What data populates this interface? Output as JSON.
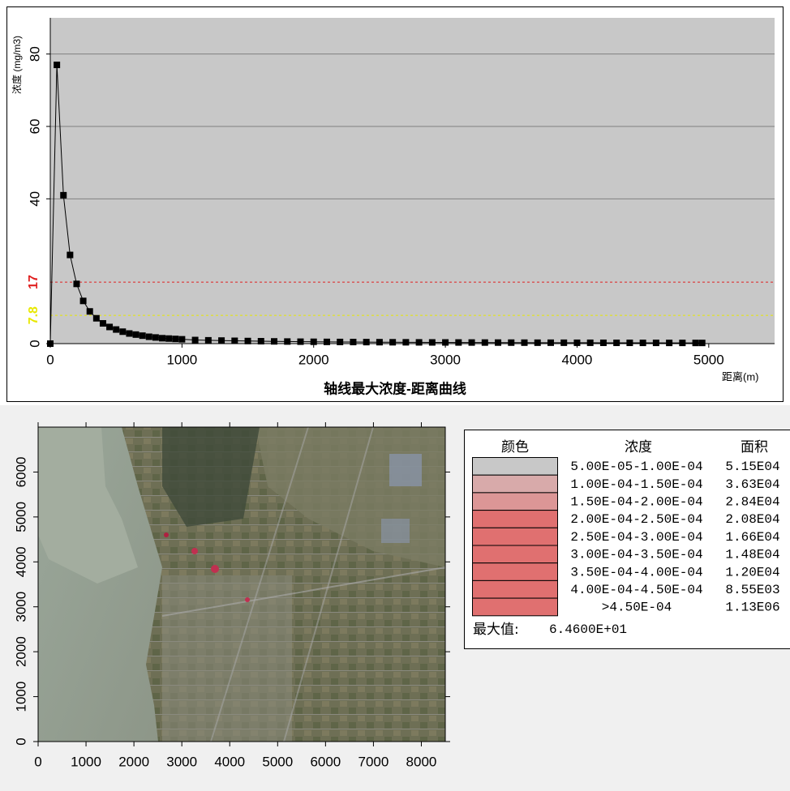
{
  "chart_data": {
    "type": "line",
    "title": "轴线最大浓度-距离曲线",
    "ylabel": "浓度 (mg/m3)",
    "xlabel": "距离(m)",
    "color": "#000000",
    "x": [
      0,
      50,
      100,
      150,
      200,
      250,
      300,
      350,
      400,
      450,
      500,
      550,
      600,
      650,
      700,
      750,
      800,
      850,
      900,
      950,
      1000,
      1100,
      1200,
      1300,
      1400,
      1500,
      1600,
      1700,
      1800,
      1900,
      2000,
      2100,
      2200,
      2300,
      2400,
      2500,
      2600,
      2700,
      2800,
      2900,
      3000,
      3100,
      3200,
      3300,
      3400,
      3500,
      3600,
      3700,
      3800,
      3900,
      4000,
      4100,
      4200,
      4300,
      4400,
      4500,
      4600,
      4700,
      4800,
      4900,
      4950
    ],
    "values": [
      0,
      77,
      41,
      24.5,
      16.5,
      11.8,
      8.9,
      7,
      5.6,
      4.6,
      3.9,
      3.3,
      2.8,
      2.5,
      2.2,
      1.9,
      1.7,
      1.5,
      1.4,
      1.3,
      1.2,
      1.0,
      0.92,
      0.85,
      0.78,
      0.72,
      0.67,
      0.62,
      0.58,
      0.54,
      0.51,
      0.48,
      0.46,
      0.44,
      0.42,
      0.4,
      0.38,
      0.37,
      0.35,
      0.34,
      0.33,
      0.32,
      0.31,
      0.3,
      0.29,
      0.28,
      0.27,
      0.26,
      0.26,
      0.25,
      0.24,
      0.24,
      0.23,
      0.22,
      0.22,
      0.21,
      0.21,
      0.2,
      0.2,
      0.19,
      0.19
    ],
    "xlim": [
      0,
      5500
    ],
    "ylim": [
      0,
      90
    ],
    "xticks": [
      0,
      1000,
      2000,
      3000,
      4000,
      5000
    ],
    "yticks": [
      0,
      40,
      60,
      80
    ],
    "grid": true,
    "reference_lines": [
      {
        "value": 17,
        "color": "#e02020"
      },
      {
        "value": 7.8,
        "color": "#e8e800"
      }
    ]
  },
  "map": {
    "xlim": [
      0,
      8500
    ],
    "ylim": [
      0,
      7000
    ],
    "xticks": [
      0,
      1000,
      2000,
      3000,
      4000,
      5000,
      6000,
      7000,
      8000
    ],
    "yticks": [
      0,
      1000,
      2000,
      3000,
      4000,
      5000,
      6000
    ]
  },
  "legend": {
    "headers": [
      "颜色",
      "浓度",
      "面积"
    ],
    "rows": [
      {
        "color": "#c8c8c8",
        "range": "5.00E-05-1.00E-04",
        "area": "5.15E04"
      },
      {
        "color": "#d8aaaa",
        "range": "1.00E-04-1.50E-04",
        "area": "3.63E04"
      },
      {
        "color": "#dc9696",
        "range": "1.50E-04-2.00E-04",
        "area": "2.84E04"
      },
      {
        "color": "#e07070",
        "range": "2.00E-04-2.50E-04",
        "area": "2.08E04"
      },
      {
        "color": "#e07070",
        "range": "2.50E-04-3.00E-04",
        "area": "1.66E04"
      },
      {
        "color": "#e07070",
        "range": "3.00E-04-3.50E-04",
        "area": "1.48E04"
      },
      {
        "color": "#e07070",
        "range": "3.50E-04-4.00E-04",
        "area": "1.20E04"
      },
      {
        "color": "#e07070",
        "range": "4.00E-04-4.50E-04",
        "area": "8.55E03"
      },
      {
        "color": "#e07070",
        "range": ">4.50E-04",
        "area": "1.13E06"
      }
    ],
    "max_label": "最大值:",
    "max_value": "6.4600E+01"
  }
}
